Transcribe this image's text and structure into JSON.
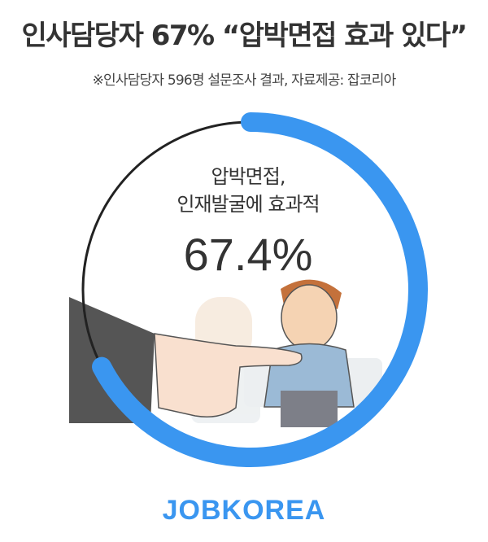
{
  "header": {
    "title": "인사담당자 67% “압박면접 효과 있다”",
    "subtitle": "※인사담당자 596명 설문조사 결과, 자료제공: 잡코리아"
  },
  "chart_data": {
    "type": "pie",
    "style": "donut",
    "label_line1": "압박면접,",
    "label_line2": "인재발굴에 효과적",
    "value_label": "67.4%",
    "values": [
      67.4,
      32.6
    ],
    "colors": [
      "#3a96f0",
      "#222222"
    ]
  },
  "illustration": "cartoon-hand-pointing-at-nervous-job-applicant",
  "footer": {
    "logo_text": "JOBKOREA"
  }
}
